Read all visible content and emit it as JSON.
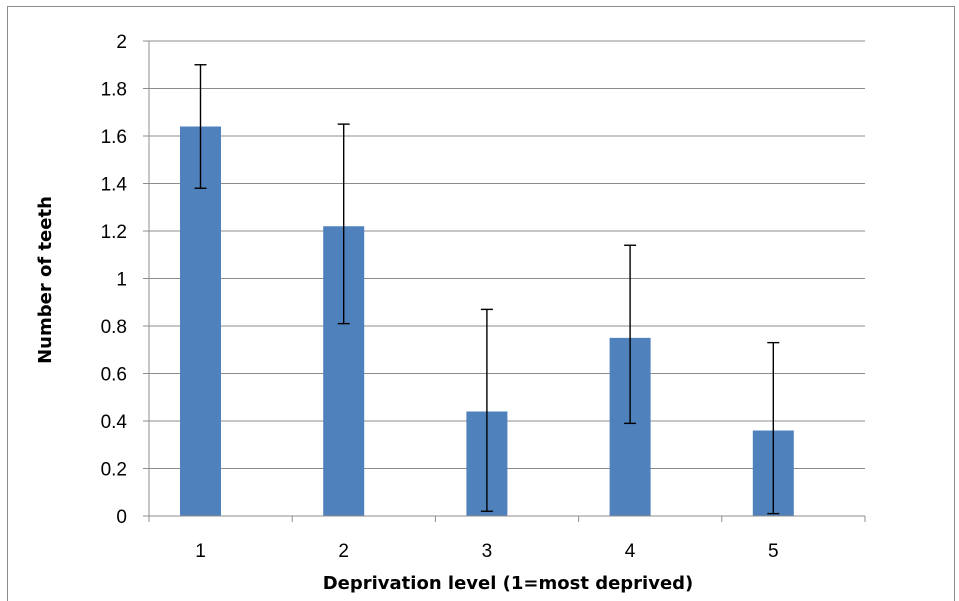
{
  "chart_data": {
    "type": "bar",
    "title": "",
    "xlabel": "Deprivation level (1=most deprived)",
    "ylabel": "Number of teeth",
    "categories": [
      "1",
      "2",
      "3",
      "4",
      "5"
    ],
    "values": [
      1.64,
      1.22,
      0.44,
      0.75,
      0.36
    ],
    "error_bars": [
      {
        "low": 1.38,
        "high": 1.9
      },
      {
        "low": 0.81,
        "high": 1.65
      },
      {
        "low": 0.02,
        "high": 0.87
      },
      {
        "low": 0.39,
        "high": 1.14
      },
      {
        "low": 0.01,
        "high": 0.73
      }
    ],
    "ylim": [
      0,
      2
    ],
    "yticks": [
      "0",
      "0.2",
      "0.4",
      "0.6",
      "0.8",
      "1",
      "1.2",
      "1.4",
      "1.6",
      "1.8",
      "2"
    ],
    "grid": true,
    "legend": "none",
    "colors": {
      "bar": "#4f81bd",
      "grid": "#8c8c8c",
      "error": "#000000"
    }
  }
}
